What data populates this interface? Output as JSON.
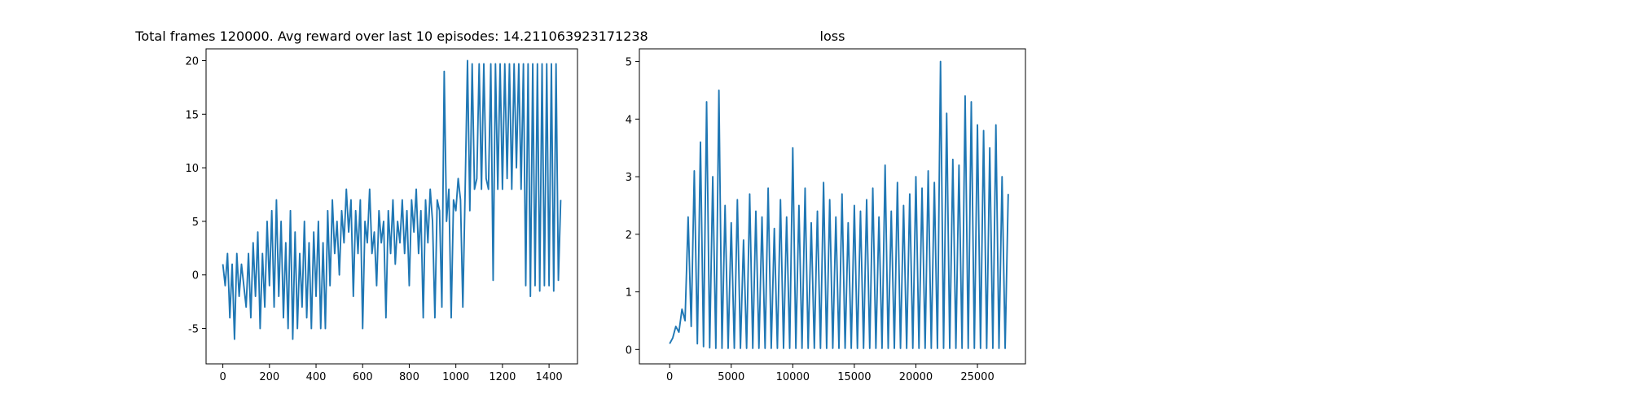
{
  "chart_data": [
    {
      "type": "line",
      "title": "Total frames 120000. Avg reward over last 10 episodes: 14.211063923171238",
      "color": "#1f77b4",
      "x": [
        0,
        10,
        20,
        30,
        40,
        50,
        60,
        70,
        80,
        90,
        100,
        110,
        120,
        130,
        140,
        150,
        160,
        170,
        180,
        190,
        200,
        210,
        220,
        230,
        240,
        250,
        260,
        270,
        280,
        290,
        300,
        310,
        320,
        330,
        340,
        350,
        360,
        370,
        380,
        390,
        400,
        410,
        420,
        430,
        440,
        450,
        460,
        470,
        480,
        490,
        500,
        510,
        520,
        530,
        540,
        550,
        560,
        570,
        580,
        590,
        600,
        610,
        620,
        630,
        640,
        650,
        660,
        670,
        680,
        690,
        700,
        710,
        720,
        730,
        740,
        750,
        760,
        770,
        780,
        790,
        800,
        810,
        820,
        830,
        840,
        850,
        860,
        870,
        880,
        890,
        900,
        910,
        920,
        930,
        940,
        950,
        960,
        970,
        980,
        990,
        1000,
        1010,
        1020,
        1030,
        1040,
        1050,
        1060,
        1070,
        1080,
        1090,
        1100,
        1110,
        1120,
        1130,
        1140,
        1150,
        1160,
        1170,
        1180,
        1190,
        1200,
        1210,
        1220,
        1230,
        1240,
        1250,
        1260,
        1270,
        1280,
        1290,
        1300,
        1310,
        1320,
        1330,
        1340,
        1350,
        1360,
        1370,
        1380,
        1390,
        1400,
        1410,
        1420,
        1430,
        1440,
        1450
      ],
      "values": [
        1,
        -1,
        2,
        -4,
        1,
        -6,
        2,
        -2,
        1,
        -1,
        -3,
        2,
        -4,
        3,
        -2,
        4,
        -5,
        2,
        -3,
        5,
        -1,
        6,
        -3,
        7,
        -2,
        5,
        -4,
        3,
        -5,
        6,
        -6,
        4,
        -5,
        2,
        -3,
        5,
        -4,
        3,
        -5,
        4,
        -2,
        5,
        -5,
        3,
        -5,
        6,
        -1,
        7,
        2,
        5,
        0,
        6,
        3,
        8,
        4,
        7,
        -2,
        6,
        2,
        7,
        -5,
        5,
        3,
        8,
        2,
        4,
        -1,
        6,
        3,
        5,
        -4,
        6,
        2,
        7,
        1,
        5,
        3,
        7,
        2,
        6,
        -1,
        7,
        4,
        8,
        2,
        6,
        -4,
        7,
        3,
        8,
        5,
        -4,
        7,
        6,
        -3,
        19,
        5,
        8,
        -4,
        7,
        6,
        9,
        7,
        -3,
        8,
        20,
        6,
        19.7,
        8,
        9,
        19.7,
        8,
        19.7,
        9,
        8,
        19.7,
        -0.5,
        19.7,
        8,
        19.7,
        8,
        19.7,
        9,
        19.7,
        8,
        19.7,
        10,
        19.7,
        8,
        19.7,
        -1,
        19.7,
        -2,
        19.7,
        -1,
        19.7,
        -1.5,
        19.7,
        -1,
        19.7,
        -1,
        19.7,
        -1.5,
        19.7,
        -0.5,
        7
      ],
      "xlim": [
        -72,
        1522
      ],
      "ylim": [
        -8.3,
        21.1
      ],
      "xticks": [
        0,
        200,
        400,
        600,
        800,
        1000,
        1200,
        1400
      ],
      "yticks": [
        -5,
        0,
        5,
        10,
        15,
        20
      ]
    },
    {
      "type": "line",
      "title": "loss",
      "color": "#1f77b4",
      "x": [
        0,
        250,
        500,
        750,
        1000,
        1250,
        1500,
        1750,
        2000,
        2250,
        2500,
        2750,
        3000,
        3250,
        3500,
        3750,
        4000,
        4250,
        4500,
        4750,
        5000,
        5250,
        5500,
        5750,
        6000,
        6250,
        6500,
        6750,
        7000,
        7250,
        7500,
        7750,
        8000,
        8250,
        8500,
        8750,
        9000,
        9250,
        9500,
        9750,
        10000,
        10250,
        10500,
        10750,
        11000,
        11250,
        11500,
        11750,
        12000,
        12250,
        12500,
        12750,
        13000,
        13250,
        13500,
        13750,
        14000,
        14250,
        14500,
        14750,
        15000,
        15250,
        15500,
        15750,
        16000,
        16250,
        16500,
        16750,
        17000,
        17250,
        17500,
        17750,
        18000,
        18250,
        18500,
        18750,
        19000,
        19250,
        19500,
        19750,
        20000,
        20250,
        20500,
        20750,
        21000,
        21250,
        21500,
        21750,
        22000,
        22250,
        22500,
        22750,
        23000,
        23250,
        23500,
        23750,
        24000,
        24250,
        24500,
        24750,
        25000,
        25250,
        25500,
        25750,
        26000,
        26250,
        26500,
        26750,
        27000,
        27250,
        27500
      ],
      "values": [
        0.1,
        0.2,
        0.4,
        0.3,
        0.7,
        0.5,
        2.3,
        0.4,
        3.1,
        0.1,
        3.6,
        0.05,
        4.3,
        0.03,
        3.0,
        0.02,
        4.5,
        0.02,
        2.5,
        0.02,
        2.2,
        0.02,
        2.6,
        0.02,
        1.9,
        0.02,
        2.7,
        0.02,
        2.4,
        0.02,
        2.3,
        0.02,
        2.8,
        0.02,
        2.1,
        0.02,
        2.6,
        0.02,
        2.3,
        0.02,
        3.5,
        0.02,
        2.5,
        0.02,
        2.8,
        0.02,
        2.2,
        0.02,
        2.4,
        0.02,
        2.9,
        0.02,
        2.6,
        0.02,
        2.3,
        0.02,
        2.7,
        0.02,
        2.2,
        0.02,
        2.5,
        0.02,
        2.4,
        0.02,
        2.6,
        0.02,
        2.8,
        0.02,
        2.3,
        0.02,
        3.2,
        0.02,
        2.4,
        0.02,
        2.9,
        0.02,
        2.5,
        0.02,
        2.7,
        0.02,
        3.0,
        0.02,
        2.8,
        0.02,
        3.1,
        0.02,
        2.9,
        0.02,
        5.0,
        0.02,
        4.1,
        0.02,
        3.3,
        0.02,
        3.2,
        0.02,
        4.4,
        0.02,
        4.3,
        0.02,
        3.9,
        0.02,
        3.8,
        0.02,
        3.5,
        0.02,
        3.9,
        0.02,
        3.0,
        0.02,
        2.7
      ],
      "xlim": [
        -2460,
        28900
      ],
      "ylim": [
        -0.25,
        5.22
      ],
      "xticks": [
        0,
        5000,
        10000,
        15000,
        20000,
        25000
      ],
      "yticks": [
        0,
        1,
        2,
        3,
        4,
        5
      ]
    }
  ]
}
